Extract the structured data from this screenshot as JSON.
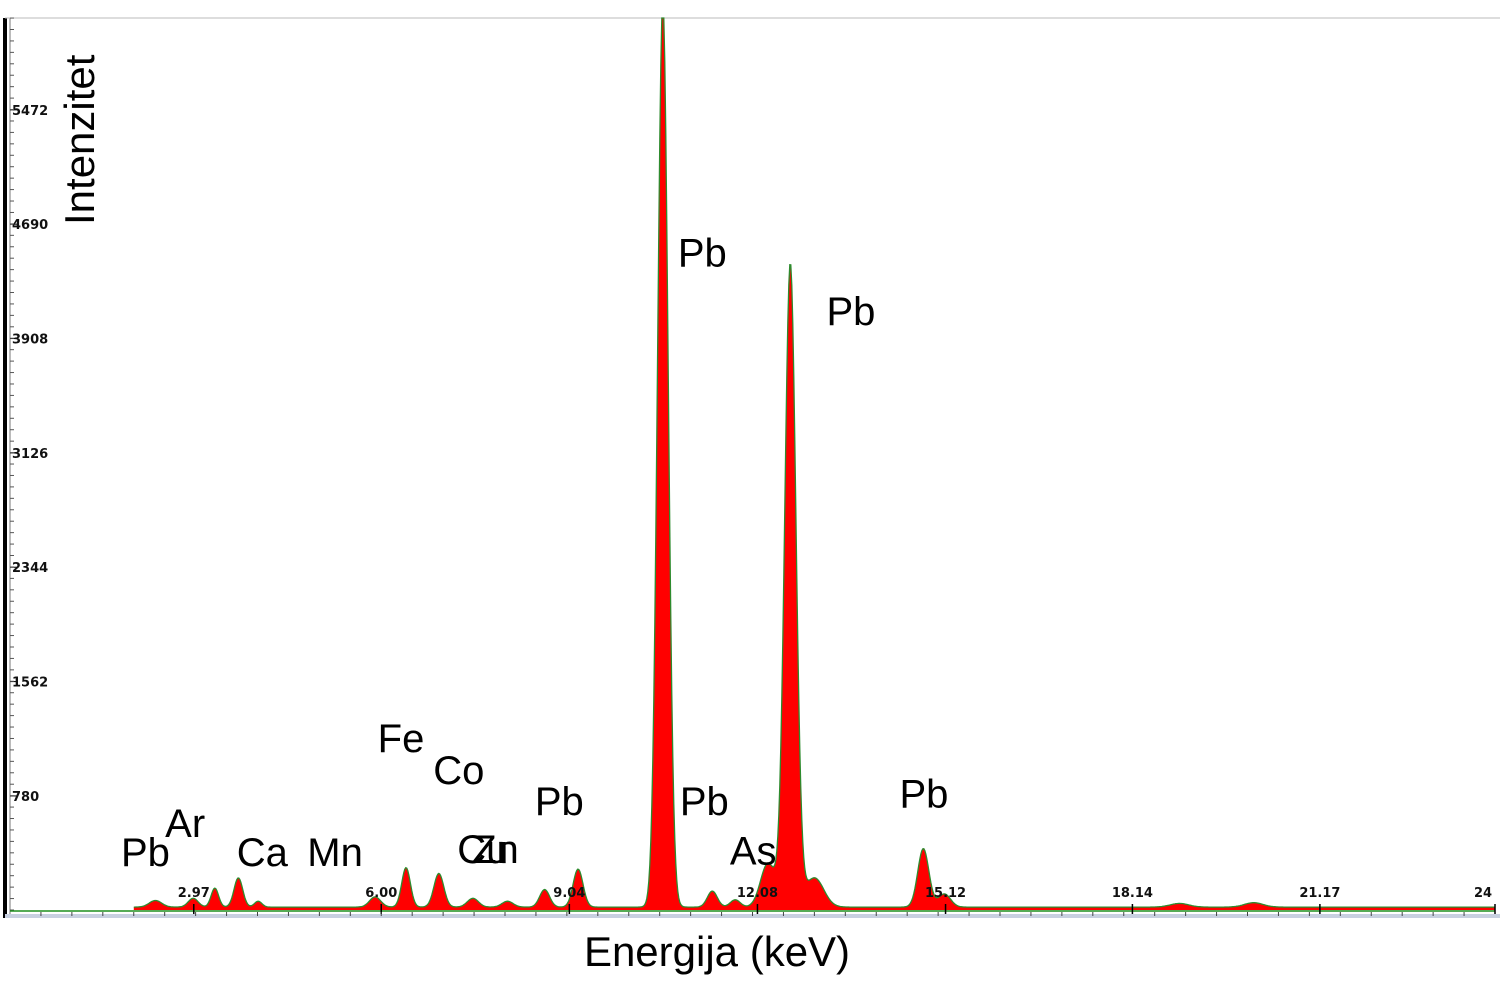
{
  "chart_data": {
    "type": "area",
    "title": "",
    "xlabel": "Energija (keV)",
    "ylabel": "Intenzitet",
    "xlim": [
      0,
      24
    ],
    "ylim": [
      0,
      6100
    ],
    "x_ticks": [
      {
        "value": 2.97,
        "label": "2.97"
      },
      {
        "value": 6.0,
        "label": "6.00"
      },
      {
        "value": 9.04,
        "label": "9.04"
      },
      {
        "value": 12.08,
        "label": "12.08"
      },
      {
        "value": 15.12,
        "label": "15.12"
      },
      {
        "value": 18.14,
        "label": "18.14"
      },
      {
        "value": 21.17,
        "label": "21.17"
      },
      {
        "value": 24,
        "label": "24"
      }
    ],
    "y_ticks": [
      {
        "value": 780,
        "label": "780"
      },
      {
        "value": 1562,
        "label": "1562"
      },
      {
        "value": 2344,
        "label": "2344"
      },
      {
        "value": 3126,
        "label": "3126"
      },
      {
        "value": 3908,
        "label": "3908"
      },
      {
        "value": 4690,
        "label": "4690"
      },
      {
        "value": 5472,
        "label": "5472"
      }
    ],
    "baseline": 20,
    "peaks": [
      {
        "energy": 2.35,
        "counts": 45,
        "width": 0.1
      },
      {
        "energy": 2.96,
        "counts": 60,
        "width": 0.08
      },
      {
        "energy": 3.31,
        "counts": 130,
        "width": 0.06
      },
      {
        "energy": 3.69,
        "counts": 200,
        "width": 0.07
      },
      {
        "energy": 4.01,
        "counts": 40,
        "width": 0.06
      },
      {
        "energy": 5.9,
        "counts": 70,
        "width": 0.09
      },
      {
        "energy": 6.4,
        "counts": 270,
        "width": 0.07
      },
      {
        "energy": 6.93,
        "counts": 230,
        "width": 0.08
      },
      {
        "energy": 7.48,
        "counts": 60,
        "width": 0.09
      },
      {
        "energy": 8.04,
        "counts": 40,
        "width": 0.09
      },
      {
        "energy": 8.64,
        "counts": 120,
        "width": 0.08
      },
      {
        "energy": 9.18,
        "counts": 260,
        "width": 0.08
      },
      {
        "energy": 10.55,
        "counts": 6200,
        "width": 0.085
      },
      {
        "energy": 11.35,
        "counts": 110,
        "width": 0.08
      },
      {
        "energy": 11.72,
        "counts": 50,
        "width": 0.08
      },
      {
        "energy": 12.25,
        "counts": 300,
        "width": 0.12
      },
      {
        "energy": 12.61,
        "counts": 4400,
        "width": 0.09
      },
      {
        "energy": 13.0,
        "counts": 200,
        "width": 0.15
      },
      {
        "energy": 14.76,
        "counts": 400,
        "width": 0.09
      },
      {
        "energy": 15.1,
        "counts": 90,
        "width": 0.1
      },
      {
        "energy": 18.9,
        "counts": 25,
        "width": 0.15
      },
      {
        "energy": 20.1,
        "counts": 30,
        "width": 0.15
      }
    ],
    "annotations": [
      {
        "text": "Pb",
        "energy": 2.35,
        "counts": 300
      },
      {
        "text": "Ar",
        "energy": 2.96,
        "counts": 500
      },
      {
        "text": "Ca",
        "energy": 3.69,
        "counts": 300
      },
      {
        "text": "Mn",
        "energy": 5.9,
        "counts": 300
      },
      {
        "text": "Fe",
        "energy": 6.4,
        "counts": 1080
      },
      {
        "text": "Co",
        "energy": 6.93,
        "counts": 860
      },
      {
        "text": "Cu",
        "energy": 7.48,
        "counts": 320
      },
      {
        "text": "Zn",
        "energy": 8.04,
        "counts": 320
      },
      {
        "text": "Pb",
        "energy": 9.04,
        "counts": 650
      },
      {
        "text": "Pb",
        "energy": 11.35,
        "counts": 650
      },
      {
        "text": "As",
        "energy": 11.72,
        "counts": 310
      },
      {
        "text": "Pb",
        "energy": 11.35,
        "counts": 4400
      },
      {
        "text": "Pb",
        "energy": 13.3,
        "counts": 4000
      },
      {
        "text": "Pb",
        "energy": 14.9,
        "counts": 700
      }
    ]
  },
  "colors": {
    "fill": "#ff0000",
    "outline": "#2e8b2e",
    "baseline": "#1f8f1f",
    "axis": "#000000",
    "background": "#ffffff"
  }
}
